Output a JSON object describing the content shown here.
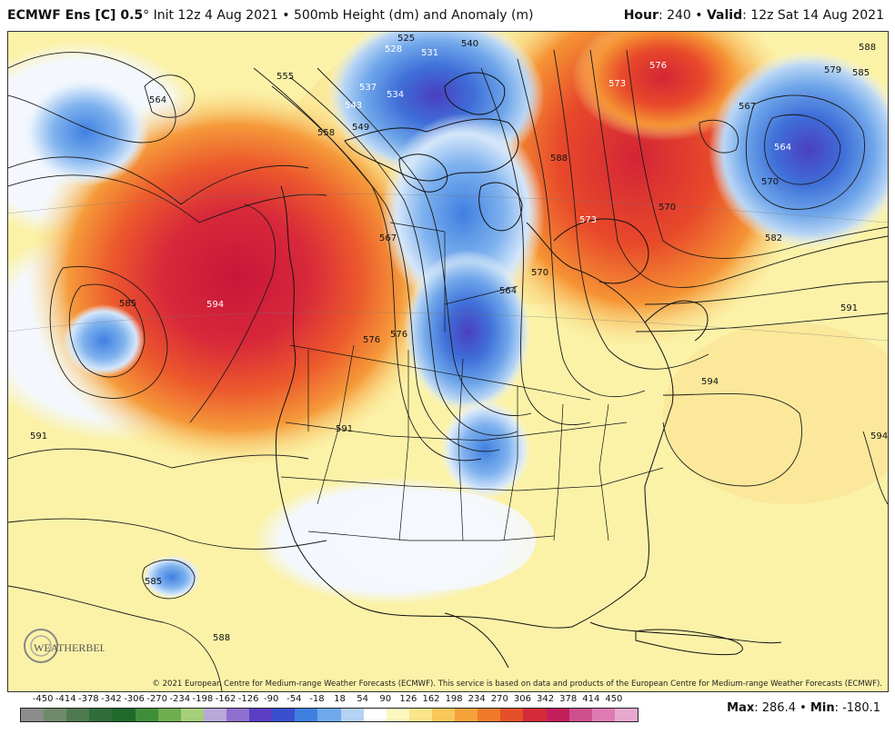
{
  "header": {
    "model": "ECMWF Ens [C] 0.5",
    "degree": "°",
    "init": " Init 12z 4 Aug 2021 • 500mb Height (dm) and Anomaly (m)",
    "hour_label": "Hour",
    "hour_value": ": 240 • ",
    "valid_label": "Valid",
    "valid_value": ": 12z Sat 14 Aug 2021"
  },
  "contour_labels": [
    "525",
    "528",
    "531",
    "540",
    "564",
    "555",
    "537",
    "534",
    "543",
    "549",
    "558",
    "567",
    "576",
    "573",
    "588",
    "579",
    "585",
    "567",
    "564",
    "570",
    "570",
    "573",
    "582",
    "591",
    "594",
    "585",
    "591",
    "594",
    "594",
    "591",
    "585",
    "588",
    "564",
    "570",
    "576",
    "576",
    "588"
  ],
  "copyright": "© 2021 European Centre for Medium-range Weather Forecasts (ECMWF). This service is based on data and products of the European Centre for Medium-range Weather Forecasts (ECMWF).",
  "brand": {
    "logo_text": "WEATHERBELL"
  },
  "scale": {
    "ticks": [
      "-450",
      "-414",
      "-378",
      "-342",
      "-306",
      "-270",
      "-234",
      "-198",
      "-162",
      "-126",
      "-90",
      "-54",
      "-18",
      "18",
      "54",
      "90",
      "126",
      "162",
      "198",
      "234",
      "270",
      "306",
      "342",
      "378",
      "414",
      "450"
    ],
    "colors": [
      "#8c8c8c",
      "#6f8a6a",
      "#4f7a4f",
      "#2f6e3a",
      "#1f6a2c",
      "#3f8f3a",
      "#6fae4f",
      "#a5cf7a",
      "#b9a9d9",
      "#8f6fd0",
      "#5a3fc4",
      "#3a4fd0",
      "#3f7fe0",
      "#6fa9ec",
      "#b4d2f4",
      "#ffffff",
      "#fdf7c0",
      "#fbe58a",
      "#f9c85a",
      "#f6a23a",
      "#f07a2a",
      "#e5502a",
      "#d52a3a",
      "#c21f5a",
      "#d04f8f",
      "#e07ab4",
      "#e9a9cf"
    ]
  },
  "stats": {
    "max_label": "Max",
    "max_value": ": 286.4 • ",
    "min_label": "Min",
    "min_value": ": -180.1"
  }
}
